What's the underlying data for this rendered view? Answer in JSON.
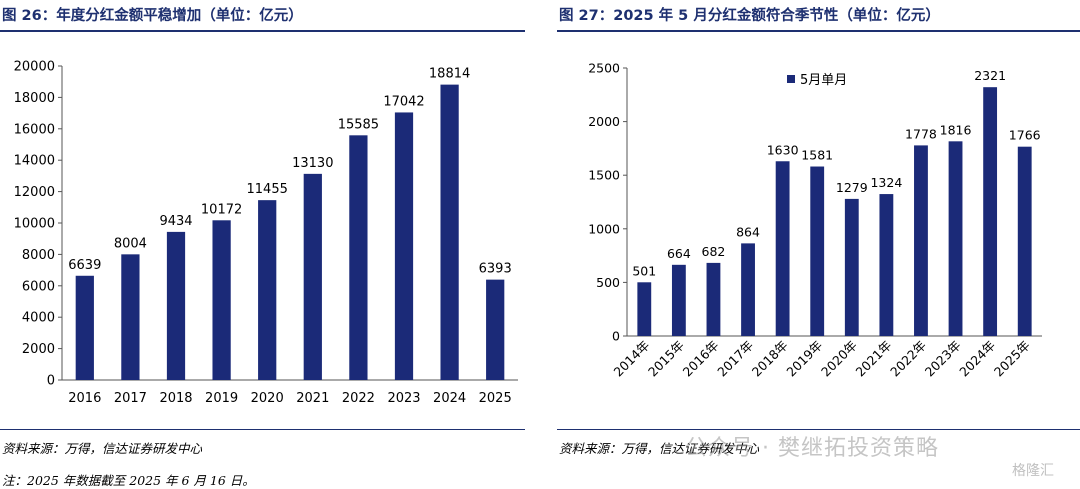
{
  "left": {
    "title": "图 26：年度分红金额平稳增加（单位：亿元）",
    "source": "资料来源：万得，信达证券研发中心",
    "note": "注：2025 年数据截至 2025 年 6 月 16 日。"
  },
  "right": {
    "title": "图 27：2025 年 5 月分红金额符合季节性（单位：亿元）",
    "source": "资料来源：万得，信达证券研发中心"
  },
  "watermark": {
    "text": "公众号 · 樊继拓投资策略",
    "logo": "格隆汇"
  },
  "colors": {
    "bar": "#1b2a78",
    "title": "#1e3070"
  },
  "chart_data": [
    {
      "type": "bar",
      "title": "图 26：年度分红金额平稳增加（单位：亿元）",
      "categories": [
        "2016",
        "2017",
        "2018",
        "2019",
        "2020",
        "2021",
        "2022",
        "2023",
        "2024",
        "2025"
      ],
      "values": [
        6639,
        8004,
        9434,
        10172,
        11455,
        13130,
        15585,
        17042,
        18814,
        6393
      ],
      "ylim": [
        0,
        20000
      ],
      "yticks": [
        0,
        2000,
        4000,
        6000,
        8000,
        10000,
        12000,
        14000,
        16000,
        18000,
        20000
      ],
      "grid": false,
      "legend": null
    },
    {
      "type": "bar",
      "title": "图 27：2025 年 5 月分红金额符合季节性（单位：亿元）",
      "categories": [
        "2014年",
        "2015年",
        "2016年",
        "2017年",
        "2018年",
        "2019年",
        "2020年",
        "2021年",
        "2022年",
        "2023年",
        "2024年",
        "2025年"
      ],
      "series": [
        {
          "name": "5月单月",
          "values": [
            501,
            664,
            682,
            864,
            1630,
            1581,
            1279,
            1324,
            1778,
            1816,
            2321,
            1766
          ]
        }
      ],
      "ylim": [
        0,
        2500
      ],
      "yticks": [
        0,
        500,
        1000,
        1500,
        2000,
        2500
      ],
      "grid": false,
      "legend": "top-left"
    }
  ]
}
